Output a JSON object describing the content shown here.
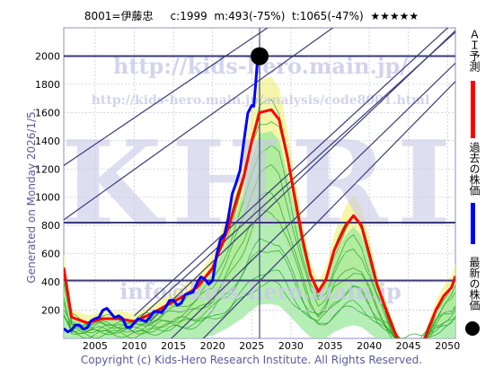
{
  "header": {
    "code": "8001=伊藤忠",
    "current": "c:1999",
    "max": "m:493(-75%)",
    "target": "t:1065(-47%)",
    "stars": "★★★★★"
  },
  "generated": "Generated on Monday 2026/1/5.",
  "copyright": "Copyright (c) Kids-Hero Research Institute. All Rights Reserved.",
  "watermark": {
    "url_top": "http://kids-hero.main.jp/",
    "url_analysis": "http://kids-hero.main.jp/analysis/code8001.html",
    "big": "KHRI",
    "url_info": "info@kids-hero.main.jp"
  },
  "legend": {
    "ai_label": "ＡＩ予測",
    "past_label": "過去の株価",
    "latest_label": "最新の株価",
    "colors": {
      "ai": "#ff0000",
      "past": "#0000ff",
      "latest": "#000000"
    }
  },
  "chart_data": {
    "type": "line",
    "xlim": [
      2001,
      2051
    ],
    "ylim": [
      0,
      2200
    ],
    "x_ticks": [
      2005,
      2010,
      2015,
      2020,
      2025,
      2030,
      2035,
      2040,
      2045,
      2050
    ],
    "y_ticks": [
      200,
      400,
      600,
      800,
      1000,
      1200,
      1400,
      1600,
      1800,
      2000
    ],
    "grid": true,
    "latest": {
      "x": 2026.0,
      "y": 1999
    },
    "horizontal_lines": [
      2000,
      820,
      410
    ],
    "series": [
      {
        "name": "過去の株価",
        "color": "#0000ff",
        "points": [
          [
            2001,
            70
          ],
          [
            2002,
            60
          ],
          [
            2003,
            95
          ],
          [
            2004,
            75
          ],
          [
            2005,
            140
          ],
          [
            2006,
            200
          ],
          [
            2007,
            180
          ],
          [
            2008,
            160
          ],
          [
            2009,
            80
          ],
          [
            2010,
            110
          ],
          [
            2011,
            130
          ],
          [
            2012,
            150
          ],
          [
            2013,
            190
          ],
          [
            2014,
            220
          ],
          [
            2015,
            270
          ],
          [
            2016,
            250
          ],
          [
            2017,
            320
          ],
          [
            2018,
            390
          ],
          [
            2019,
            420
          ],
          [
            2020,
            410
          ],
          [
            2021,
            700
          ],
          [
            2022,
            850
          ],
          [
            2023,
            1100
          ],
          [
            2024,
            1400
          ],
          [
            2025,
            1650
          ],
          [
            2025.5,
            1800
          ],
          [
            2026,
            1999
          ]
        ]
      },
      {
        "name": "ＡＩ予測",
        "color": "#ff0000",
        "points": [
          [
            2001,
            500
          ],
          [
            2002,
            150
          ],
          [
            2004,
            110
          ],
          [
            2006,
            140
          ],
          [
            2008,
            140
          ],
          [
            2010,
            120
          ],
          [
            2012,
            170
          ],
          [
            2014,
            230
          ],
          [
            2016,
            290
          ],
          [
            2018,
            360
          ],
          [
            2020,
            500
          ],
          [
            2022,
            780
          ],
          [
            2024,
            1150
          ],
          [
            2025,
            1400
          ],
          [
            2026,
            1600
          ],
          [
            2027.5,
            1620
          ],
          [
            2028.5,
            1550
          ],
          [
            2029.5,
            1300
          ],
          [
            2030.5,
            1000
          ],
          [
            2031.5,
            700
          ],
          [
            2032.5,
            450
          ],
          [
            2033.5,
            330
          ],
          [
            2034.5,
            420
          ],
          [
            2035.5,
            620
          ],
          [
            2037,
            800
          ],
          [
            2038,
            870
          ],
          [
            2039,
            800
          ],
          [
            2040,
            600
          ],
          [
            2041,
            380
          ],
          [
            2042.5,
            150
          ],
          [
            2043.5,
            10
          ],
          [
            2044.5,
            -100
          ],
          [
            2046.5,
            -100
          ],
          [
            2047.5,
            60
          ],
          [
            2048.5,
            200
          ],
          [
            2049.5,
            300
          ],
          [
            2050.5,
            360
          ],
          [
            2051,
            440
          ]
        ]
      }
    ]
  }
}
